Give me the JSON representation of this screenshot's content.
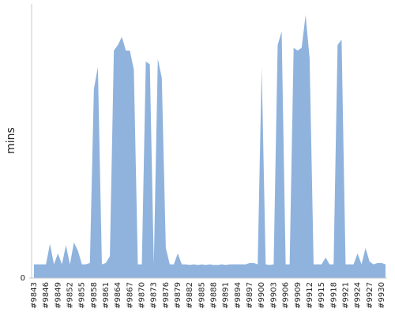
{
  "chart_data": {
    "type": "area",
    "y_label": "mins",
    "color": "#8fb3dd",
    "categories": [
      "#9843",
      null,
      null,
      "#9846",
      null,
      null,
      "#9849",
      null,
      null,
      "#9852",
      null,
      null,
      "#9855",
      null,
      null,
      "#9858",
      null,
      null,
      "#9861",
      null,
      null,
      "#9864",
      null,
      null,
      "#9867",
      null,
      null,
      "#9870",
      null,
      null,
      "#9873",
      null,
      null,
      "#9876",
      null,
      null,
      "#9879",
      null,
      null,
      "#9882",
      null,
      null,
      "#9885",
      null,
      null,
      "#9888",
      null,
      null,
      "#9891",
      null,
      null,
      "#9894",
      null,
      null,
      "#9897",
      null,
      null,
      "#9900",
      null,
      null,
      "#9903",
      null,
      null,
      "#9906",
      null,
      null,
      "#9909",
      null,
      null,
      "#9912",
      null,
      null,
      "#9915",
      null,
      null,
      "#9918",
      null,
      null,
      "#9921",
      null,
      null,
      "#9924",
      null,
      null,
      "#9927",
      null,
      null,
      "#9930",
      null
    ],
    "values": [
      5,
      5,
      5,
      5,
      12.5,
      5,
      9,
      5,
      12,
      5,
      13,
      10,
      5,
      5,
      5.5,
      69,
      77,
      5,
      5.5,
      8,
      83,
      85,
      88,
      83,
      83,
      76,
      5,
      5,
      79,
      78,
      5,
      80,
      73,
      11,
      5,
      5,
      9,
      5,
      5,
      4.8,
      5,
      4.8,
      5,
      4.8,
      5,
      4.8,
      4.8,
      5,
      4.8,
      5,
      5,
      5,
      5,
      5,
      5.5,
      5.5,
      5,
      77,
      5,
      4.8,
      5,
      85,
      90,
      5,
      5,
      84,
      83,
      84,
      96,
      80,
      5,
      5,
      5,
      7.5,
      5,
      5,
      85,
      87,
      5,
      5,
      5,
      9,
      5,
      11,
      6,
      5,
      5.5,
      5.5,
      5
    ],
    "ylim": [
      0,
      100
    ],
    "yticks": [
      0
    ]
  }
}
